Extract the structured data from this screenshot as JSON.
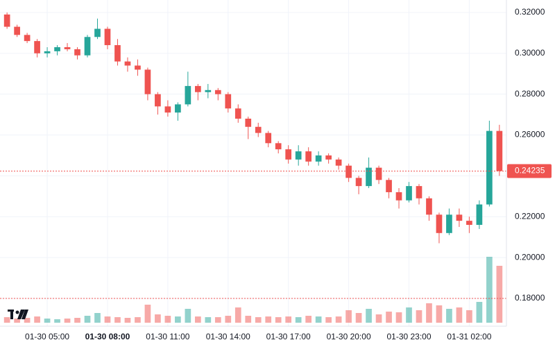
{
  "chart_data": {
    "type": "candlestick",
    "up_color": "#26a69a",
    "down_color": "#ef5350",
    "grid": true,
    "xlim": [
      -0.7,
      49.7
    ],
    "xticks": [
      {
        "value": 4,
        "label": "01-30 05:00"
      },
      {
        "value": 10,
        "label": "01-30 08:00",
        "emphasis": true
      },
      {
        "value": 16,
        "label": "01-30 11:00"
      },
      {
        "value": 22,
        "label": "01-30 14:00"
      },
      {
        "value": 28,
        "label": "01-30 17:00"
      },
      {
        "value": 34,
        "label": "01-30 20:00"
      },
      {
        "value": 40,
        "label": "01-30 23:00"
      },
      {
        "value": 46,
        "label": "01-31 02:00"
      }
    ],
    "ylim": [
      0.1664,
      0.3261
    ],
    "yticks": [
      {
        "value": 0.18,
        "label": "0.18000"
      },
      {
        "value": 0.2,
        "label": "0.20000"
      },
      {
        "value": 0.22,
        "label": "0.22000"
      },
      {
        "value": 0.24,
        "label": "0.24000"
      },
      {
        "value": 0.26,
        "label": "0.26000"
      },
      {
        "value": 0.28,
        "label": "0.28000"
      },
      {
        "value": 0.3,
        "label": "0.30000"
      },
      {
        "value": 0.32,
        "label": "0.32000"
      }
    ],
    "last_price": {
      "value": 0.24235,
      "label": "0.24235"
    },
    "open": [
      0.319,
      0.313,
      0.309,
      0.306,
      0.3,
      0.301,
      0.303,
      0.302,
      0.299,
      0.308,
      0.312,
      0.304,
      0.296,
      0.294,
      0.292,
      0.28,
      0.274,
      0.271,
      0.275,
      0.284,
      0.281,
      0.282,
      0.28,
      0.273,
      0.268,
      0.264,
      0.261,
      0.256,
      0.253,
      0.248,
      0.252,
      0.247,
      0.25,
      0.248,
      0.245,
      0.239,
      0.235,
      0.244,
      0.238,
      0.232,
      0.228,
      0.235,
      0.229,
      0.221,
      0.212,
      0.221,
      0.218,
      0.216,
      0.226,
      0.262
    ],
    "high": [
      0.32,
      0.314,
      0.31,
      0.307,
      0.303,
      0.304,
      0.305,
      0.303,
      0.309,
      0.317,
      0.313,
      0.307,
      0.298,
      0.297,
      0.293,
      0.281,
      0.277,
      0.276,
      0.291,
      0.285,
      0.285,
      0.283,
      0.281,
      0.275,
      0.269,
      0.266,
      0.262,
      0.257,
      0.255,
      0.255,
      0.254,
      0.252,
      0.251,
      0.249,
      0.246,
      0.24,
      0.249,
      0.245,
      0.239,
      0.234,
      0.237,
      0.236,
      0.23,
      0.222,
      0.224,
      0.224,
      0.22,
      0.228,
      0.267,
      0.265
    ],
    "low": [
      0.312,
      0.308,
      0.305,
      0.298,
      0.298,
      0.299,
      0.301,
      0.297,
      0.298,
      0.307,
      0.302,
      0.294,
      0.291,
      0.289,
      0.277,
      0.27,
      0.269,
      0.267,
      0.274,
      0.277,
      0.278,
      0.277,
      0.271,
      0.266,
      0.258,
      0.259,
      0.254,
      0.251,
      0.246,
      0.245,
      0.245,
      0.245,
      0.246,
      0.243,
      0.237,
      0.231,
      0.234,
      0.236,
      0.229,
      0.224,
      0.227,
      0.226,
      0.218,
      0.207,
      0.211,
      0.215,
      0.212,
      0.214,
      0.225,
      0.24
    ],
    "close": [
      0.313,
      0.309,
      0.306,
      0.3,
      0.301,
      0.303,
      0.302,
      0.299,
      0.308,
      0.312,
      0.304,
      0.296,
      0.294,
      0.292,
      0.28,
      0.274,
      0.271,
      0.275,
      0.284,
      0.281,
      0.282,
      0.28,
      0.273,
      0.268,
      0.264,
      0.261,
      0.256,
      0.253,
      0.248,
      0.252,
      0.247,
      0.25,
      0.248,
      0.245,
      0.239,
      0.235,
      0.244,
      0.238,
      0.232,
      0.228,
      0.235,
      0.229,
      0.221,
      0.212,
      0.221,
      0.218,
      0.216,
      0.226,
      0.262,
      0.24235
    ],
    "volume": [
      8,
      6,
      7,
      9,
      6,
      5,
      6,
      7,
      10,
      14,
      9,
      8,
      7,
      8,
      26,
      12,
      10,
      9,
      20,
      9,
      8,
      8,
      10,
      22,
      10,
      8,
      9,
      8,
      9,
      8,
      10,
      9,
      8,
      9,
      18,
      14,
      20,
      12,
      16,
      15,
      22,
      18,
      28,
      25,
      20,
      22,
      18,
      30,
      95,
      82
    ],
    "volume_lim": [
      0,
      100
    ],
    "volume_ref": 35
  }
}
